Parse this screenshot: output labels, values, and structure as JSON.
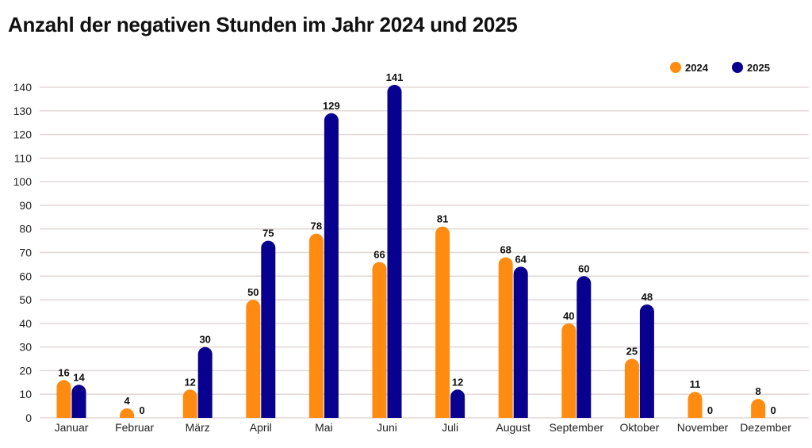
{
  "chart_data": {
    "type": "bar",
    "title": "Anzahl der negativen Stunden im Jahr 2024 und 2025",
    "xlabel": "",
    "ylabel": "",
    "ylim": [
      0,
      140
    ],
    "yticks": [
      0,
      10,
      20,
      30,
      40,
      50,
      60,
      70,
      80,
      90,
      100,
      110,
      120,
      130,
      140
    ],
    "grid": true,
    "legend_position": "top-right",
    "categories": [
      "Januar",
      "Februar",
      "März",
      "April",
      "Mai",
      "Juni",
      "Juli",
      "August",
      "September",
      "Oktober",
      "November",
      "Dezember"
    ],
    "series": [
      {
        "name": "2024",
        "color": "#ff8c10",
        "values": [
          16,
          4,
          12,
          50,
          78,
          66,
          81,
          68,
          40,
          25,
          11,
          8
        ]
      },
      {
        "name": "2025",
        "color": "#08008f",
        "values": [
          14,
          0,
          30,
          75,
          129,
          141,
          12,
          64,
          60,
          48,
          0,
          0
        ]
      }
    ]
  }
}
